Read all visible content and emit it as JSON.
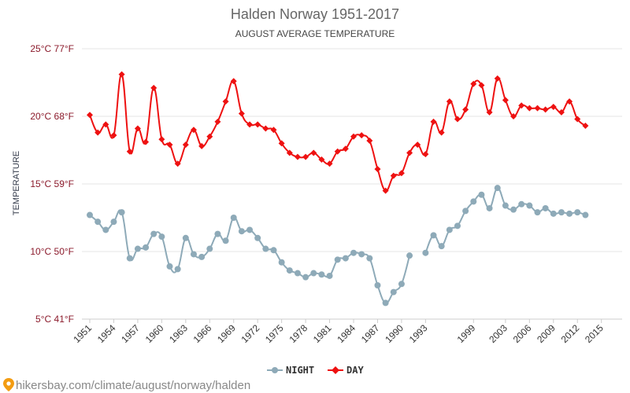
{
  "chart_data": {
    "type": "line",
    "title": "Halden Norway 1951-2017",
    "subtitle": "AUGUST AVERAGE TEMPERATURE",
    "ylabel": "TEMPERATURE",
    "xlabel": "",
    "y_ticks": [
      {
        "value": 25,
        "label": "25°C 77°F"
      },
      {
        "value": 20,
        "label": "20°C 68°F"
      },
      {
        "value": 15,
        "label": "15°C 59°F"
      },
      {
        "value": 10,
        "label": "10°C 50°F"
      },
      {
        "value": 5,
        "label": "5°C 41°F"
      }
    ],
    "ylim": [
      5,
      25
    ],
    "xlim": [
      1951,
      2017
    ],
    "x_tick_labels": [
      "1951",
      "1954",
      "1957",
      "1960",
      "1963",
      "1966",
      "1969",
      "1972",
      "1975",
      "1978",
      "1981",
      "1984",
      "1987",
      "1990",
      "1993",
      "1999",
      "2003",
      "2006",
      "2009",
      "2012",
      "2015"
    ],
    "grid": "horizontal",
    "legend_position": "bottom",
    "series": [
      {
        "name": "NIGHT",
        "color": "#8eaab8",
        "marker": "circle",
        "values": [
          [
            1951,
            12.7
          ],
          [
            1952,
            12.2
          ],
          [
            1953,
            11.6
          ],
          [
            1954,
            12.2
          ],
          [
            1955,
            12.9
          ],
          [
            1956,
            9.5
          ],
          [
            1957,
            10.2
          ],
          [
            1958,
            10.3
          ],
          [
            1959,
            11.3
          ],
          [
            1960,
            11.1
          ],
          [
            1961,
            8.9
          ],
          [
            1962,
            8.7
          ],
          [
            1963,
            11.0
          ],
          [
            1964,
            9.8
          ],
          [
            1965,
            9.6
          ],
          [
            1966,
            10.2
          ],
          [
            1967,
            11.3
          ],
          [
            1968,
            10.8
          ],
          [
            1969,
            12.5
          ],
          [
            1970,
            11.5
          ],
          [
            1971,
            11.6
          ],
          [
            1972,
            11.0
          ],
          [
            1973,
            10.2
          ],
          [
            1974,
            10.1
          ],
          [
            1975,
            9.2
          ],
          [
            1976,
            8.6
          ],
          [
            1977,
            8.4
          ],
          [
            1978,
            8.1
          ],
          [
            1979,
            8.4
          ],
          [
            1980,
            8.3
          ],
          [
            1981,
            8.2
          ],
          [
            1982,
            9.4
          ],
          [
            1983,
            9.5
          ],
          [
            1984,
            9.9
          ],
          [
            1985,
            9.8
          ],
          [
            1986,
            9.5
          ],
          [
            1987,
            7.5
          ],
          [
            1988,
            6.2
          ],
          [
            1989,
            7.0
          ],
          [
            1990,
            7.6
          ],
          [
            1991,
            9.7
          ],
          [
            1993,
            9.9
          ],
          [
            1994,
            11.2
          ],
          [
            1995,
            10.4
          ],
          [
            1996,
            11.6
          ],
          [
            1997,
            11.9
          ],
          [
            1998,
            13.0
          ],
          [
            1999,
            13.7
          ],
          [
            2000,
            14.2
          ],
          [
            2001,
            13.2
          ],
          [
            2002,
            14.7
          ],
          [
            2003,
            13.4
          ],
          [
            2004,
            13.1
          ],
          [
            2005,
            13.5
          ],
          [
            2006,
            13.4
          ],
          [
            2007,
            12.9
          ],
          [
            2008,
            13.2
          ],
          [
            2009,
            12.8
          ],
          [
            2010,
            12.9
          ],
          [
            2011,
            12.8
          ],
          [
            2012,
            12.9
          ],
          [
            2013,
            12.7
          ]
        ]
      },
      {
        "name": "DAY",
        "color": "#ee1111",
        "marker": "diamond",
        "values": [
          [
            1951,
            20.1
          ],
          [
            1952,
            18.8
          ],
          [
            1953,
            19.4
          ],
          [
            1954,
            18.6
          ],
          [
            1955,
            23.1
          ],
          [
            1956,
            17.4
          ],
          [
            1957,
            19.1
          ],
          [
            1958,
            18.1
          ],
          [
            1959,
            22.1
          ],
          [
            1960,
            18.3
          ],
          [
            1961,
            17.9
          ],
          [
            1962,
            16.5
          ],
          [
            1963,
            17.9
          ],
          [
            1964,
            19.0
          ],
          [
            1965,
            17.8
          ],
          [
            1966,
            18.5
          ],
          [
            1967,
            19.6
          ],
          [
            1968,
            21.1
          ],
          [
            1969,
            22.6
          ],
          [
            1970,
            20.2
          ],
          [
            1971,
            19.4
          ],
          [
            1972,
            19.4
          ],
          [
            1973,
            19.1
          ],
          [
            1974,
            19.0
          ],
          [
            1975,
            18.0
          ],
          [
            1976,
            17.3
          ],
          [
            1977,
            17.0
          ],
          [
            1978,
            17.0
          ],
          [
            1979,
            17.3
          ],
          [
            1980,
            16.8
          ],
          [
            1981,
            16.5
          ],
          [
            1982,
            17.4
          ],
          [
            1983,
            17.6
          ],
          [
            1984,
            18.5
          ],
          [
            1985,
            18.6
          ],
          [
            1986,
            18.2
          ],
          [
            1987,
            16.1
          ],
          [
            1988,
            14.5
          ],
          [
            1989,
            15.6
          ],
          [
            1990,
            15.8
          ],
          [
            1991,
            17.3
          ],
          [
            1992,
            17.9
          ],
          [
            1993,
            17.2
          ],
          [
            1994,
            19.6
          ],
          [
            1995,
            18.8
          ],
          [
            1996,
            21.1
          ],
          [
            1997,
            19.8
          ],
          [
            1998,
            20.5
          ],
          [
            1999,
            22.4
          ],
          [
            2000,
            22.3
          ],
          [
            2001,
            20.3
          ],
          [
            2002,
            22.8
          ],
          [
            2003,
            21.2
          ],
          [
            2004,
            20.0
          ],
          [
            2005,
            20.8
          ],
          [
            2006,
            20.6
          ],
          [
            2007,
            20.6
          ],
          [
            2008,
            20.5
          ],
          [
            2009,
            20.7
          ],
          [
            2010,
            20.3
          ],
          [
            2011,
            21.1
          ],
          [
            2012,
            19.8
          ],
          [
            2013,
            19.3
          ]
        ]
      }
    ]
  },
  "footer": {
    "source_text": "hikersbay.com/climate/august/norway/halden",
    "pin_icon": "location-pin-icon"
  }
}
